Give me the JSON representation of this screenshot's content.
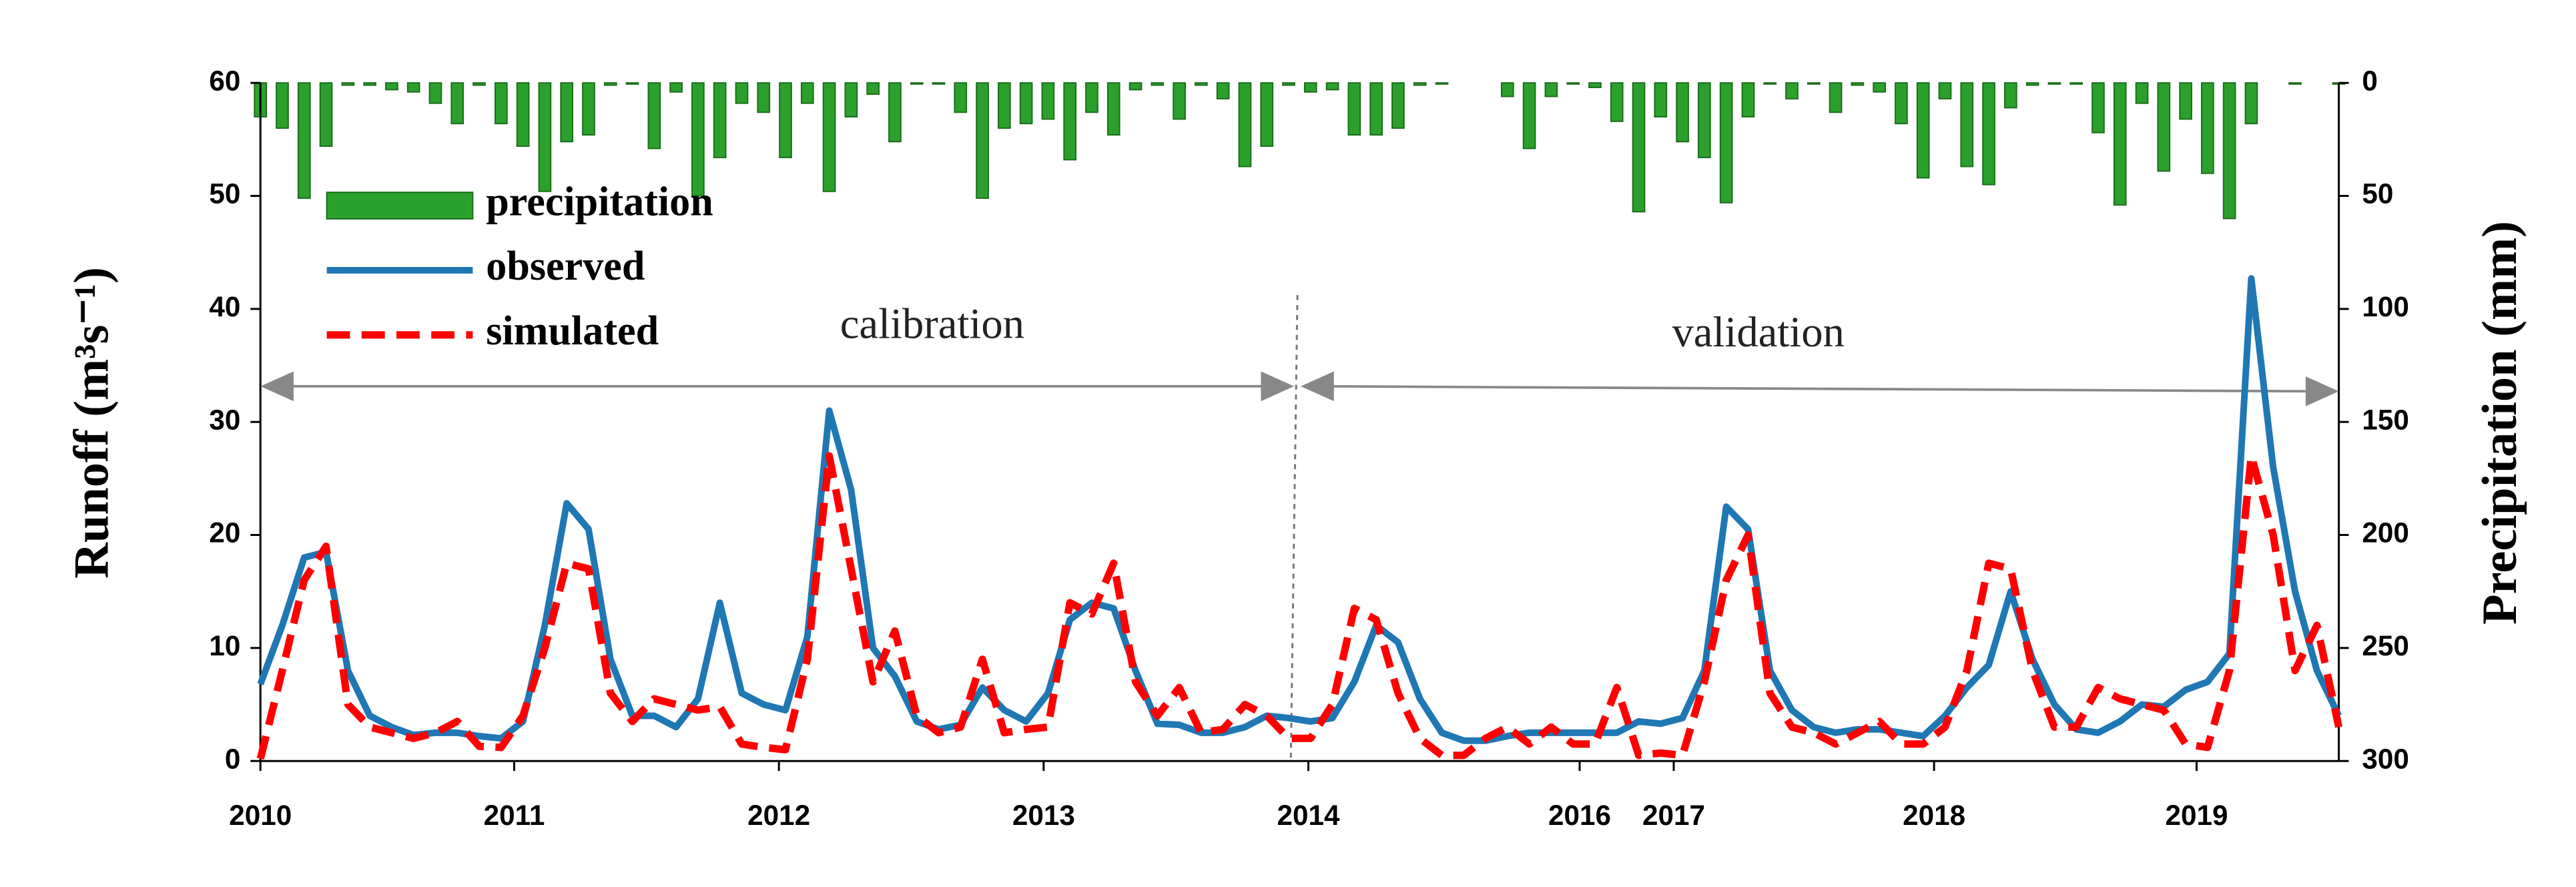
{
  "chart_data": {
    "type": "line",
    "ylabel": "Runoff (m³s⁻¹)",
    "y2label": "Precipitation (mm)",
    "annotations": [
      "calibration",
      "validation"
    ],
    "x": [
      0,
      1,
      2,
      3,
      4,
      5,
      6,
      7,
      8,
      9,
      10,
      11,
      12,
      13,
      14,
      15,
      16,
      17,
      18,
      19,
      20,
      21,
      22,
      23,
      24,
      25,
      26,
      27,
      28,
      29,
      30,
      31,
      32,
      33,
      34,
      35,
      36,
      37,
      38,
      39,
      40,
      41,
      42,
      43,
      44,
      45,
      46,
      47,
      48,
      49,
      50,
      51,
      52,
      53,
      54,
      55,
      56,
      57,
      58,
      59,
      60,
      61,
      62,
      63,
      64,
      65,
      66,
      67,
      68,
      69,
      70,
      71,
      72,
      73,
      74,
      75,
      76,
      77,
      78,
      79,
      80,
      81,
      82,
      83,
      84,
      85,
      86,
      87,
      88,
      89,
      90,
      91,
      92,
      93,
      94,
      95
    ],
    "xlim": [
      0,
      95
    ],
    "xticks": [
      {
        "value": 0,
        "label": "2010"
      },
      {
        "value": 11.6,
        "label": "2011"
      },
      {
        "value": 23.7,
        "label": "2012"
      },
      {
        "value": 35.8,
        "label": "2013"
      },
      {
        "value": 47.9,
        "label": "2014"
      },
      {
        "value": 60.3,
        "label": "2016"
      },
      {
        "value": 64.6,
        "label": "2017"
      },
      {
        "value": 76.5,
        "label": "2018"
      },
      {
        "value": 88.5,
        "label": "2019"
      }
    ],
    "ylim": [
      0,
      60
    ],
    "yticks": [
      0,
      10,
      20,
      30,
      40,
      50,
      60
    ],
    "y2lim": [
      300,
      0
    ],
    "y2ticks": [
      0,
      50,
      100,
      150,
      200,
      250,
      300
    ],
    "legend": "upper left",
    "series": [
      {
        "name": "precipitation",
        "type": "bar",
        "axis": "y2",
        "color": "#2ca02c",
        "values": [
          15,
          20,
          51,
          28,
          1,
          1,
          3,
          4,
          9,
          18,
          1,
          18,
          28,
          48,
          26,
          23,
          1,
          0.5,
          29,
          4,
          50,
          33,
          9,
          13,
          33,
          9,
          48,
          15,
          5,
          26,
          0.5,
          0.5,
          13,
          51,
          20,
          18,
          16,
          34,
          13,
          23,
          3,
          1,
          16,
          1,
          7,
          37,
          28,
          1,
          4,
          3,
          23,
          23,
          20,
          1,
          0.5,
          0,
          0,
          6,
          29,
          6,
          0.5,
          2,
          17,
          57,
          15,
          26,
          33,
          53,
          15,
          0.5,
          7,
          0.5,
          13,
          1,
          4,
          18,
          42,
          7,
          37,
          45,
          11,
          1,
          0.5,
          0.5,
          22,
          54,
          9,
          39,
          16,
          40,
          60,
          18,
          0,
          0.5,
          0,
          0.5
        ]
      },
      {
        "name": "observed",
        "type": "line",
        "color": "#1f77b4",
        "values": [
          6.8,
          12,
          18,
          18.5,
          8,
          4,
          3,
          2.3,
          2.5,
          2.5,
          2.2,
          2,
          3.5,
          12,
          22.8,
          20.5,
          9,
          4,
          4,
          3,
          5.5,
          14,
          6,
          5,
          4.5,
          11,
          31,
          24,
          10,
          7.5,
          3.5,
          2.8,
          3.2,
          6.5,
          4.5,
          3.5,
          6,
          12.5,
          14,
          13.5,
          8,
          3.3,
          3.2,
          2.5,
          2.5,
          3,
          4,
          3.8,
          3.5,
          3.8,
          7,
          12,
          10.5,
          5.5,
          2.5,
          1.8,
          1.8,
          2.2,
          2.5,
          2.5,
          2.5,
          2.5,
          2.5,
          3.5,
          3.3,
          3.8,
          8,
          22.5,
          20.5,
          8,
          4.5,
          3,
          2.5,
          2.8,
          2.8,
          2.5,
          2.2,
          4,
          6.5,
          8.5,
          15,
          9,
          5,
          2.8,
          2.5,
          3.5,
          5,
          4.8,
          6.3,
          7,
          9.5,
          42.7,
          26,
          15,
          8,
          4
        ]
      },
      {
        "name": "simulated",
        "type": "line",
        "dashed": true,
        "color": "#ff0000",
        "values": [
          0.2,
          8,
          16,
          19,
          5,
          3,
          2.5,
          2,
          2.5,
          3.5,
          1.3,
          1.2,
          4,
          10,
          17.5,
          17,
          6,
          3.5,
          5.5,
          5,
          4.5,
          4.8,
          1.5,
          1.2,
          1,
          9,
          27,
          17,
          7,
          11.5,
          4,
          2.5,
          3,
          9,
          2.5,
          2.8,
          3,
          14,
          13,
          17.5,
          7,
          4,
          6.5,
          2.5,
          2.8,
          5,
          4,
          2,
          2,
          5,
          13.5,
          12.5,
          6,
          2,
          0.5,
          0.5,
          2,
          3,
          1.5,
          3,
          1.5,
          1.5,
          6.5,
          0.5,
          0.7,
          0.5,
          7,
          16,
          20,
          6,
          3,
          2.5,
          1.5,
          2.5,
          3.5,
          1.5,
          1.5,
          3,
          8,
          17.5,
          17,
          8,
          3,
          3,
          6.5,
          5.5,
          5,
          4.5,
          1.5,
          1.2,
          8,
          27,
          20,
          8,
          12,
          3
        ]
      }
    ]
  }
}
